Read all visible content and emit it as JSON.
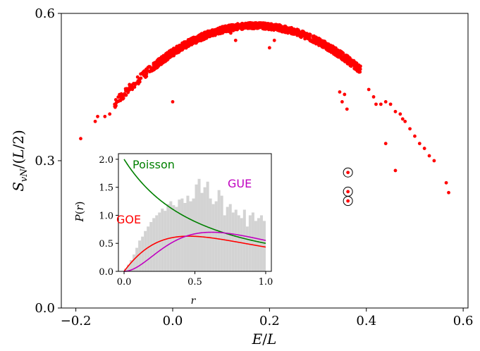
{
  "chart_data": [
    {
      "type": "scatter",
      "xlabel": "E/L",
      "ylabel": "S_vN/(L/2)",
      "xlim": [
        -0.23,
        0.61
      ],
      "ylim": [
        0.0,
        0.6
      ],
      "xticks": [
        "−0.2",
        "0.0",
        "0.2",
        "0.4",
        "0.6"
      ],
      "yticks": [
        "0.0",
        "0.3",
        "0.6"
      ],
      "grid": false,
      "point_color": "#ff0000",
      "highlighted_points": [
        {
          "x": 0.362,
          "y": 0.276
        },
        {
          "x": 0.362,
          "y": 0.237
        },
        {
          "x": 0.362,
          "y": 0.218
        }
      ],
      "outlier_points": [
        {
          "x": -0.19,
          "y": 0.345
        },
        {
          "x": -0.16,
          "y": 0.38
        },
        {
          "x": -0.155,
          "y": 0.39
        },
        {
          "x": -0.14,
          "y": 0.39
        },
        {
          "x": -0.13,
          "y": 0.395
        },
        {
          "x": 0.345,
          "y": 0.44
        },
        {
          "x": 0.355,
          "y": 0.435
        },
        {
          "x": 0.35,
          "y": 0.42
        },
        {
          "x": 0.36,
          "y": 0.405
        },
        {
          "x": 0.405,
          "y": 0.445
        },
        {
          "x": 0.415,
          "y": 0.43
        },
        {
          "x": 0.42,
          "y": 0.415
        },
        {
          "x": 0.43,
          "y": 0.415
        },
        {
          "x": 0.44,
          "y": 0.42
        },
        {
          "x": 0.45,
          "y": 0.415
        },
        {
          "x": 0.46,
          "y": 0.4
        },
        {
          "x": 0.47,
          "y": 0.395
        },
        {
          "x": 0.475,
          "y": 0.385
        },
        {
          "x": 0.48,
          "y": 0.38
        },
        {
          "x": 0.49,
          "y": 0.365
        },
        {
          "x": 0.5,
          "y": 0.35
        },
        {
          "x": 0.51,
          "y": 0.335
        },
        {
          "x": 0.52,
          "y": 0.325
        },
        {
          "x": 0.53,
          "y": 0.31
        },
        {
          "x": 0.54,
          "y": 0.3
        },
        {
          "x": 0.44,
          "y": 0.335
        },
        {
          "x": 0.46,
          "y": 0.28
        },
        {
          "x": 0.565,
          "y": 0.255
        },
        {
          "x": 0.57,
          "y": 0.235
        },
        {
          "x": 0.0,
          "y": 0.42
        },
        {
          "x": 0.12,
          "y": 0.56
        },
        {
          "x": 0.13,
          "y": 0.545
        },
        {
          "x": 0.2,
          "y": 0.53
        },
        {
          "x": 0.21,
          "y": 0.545
        }
      ],
      "curve_points": 1400,
      "curve_model": "approximately parabolic dense band peaking near E/L≈0.17, S≈0.575"
    },
    {
      "type": "line",
      "inset": true,
      "xlabel": "r",
      "ylabel": "P(r)",
      "xlim": [
        -0.04,
        1.04
      ],
      "ylim": [
        0.0,
        2.1
      ],
      "xticks": [
        "0.0",
        "0.5",
        "1.0"
      ],
      "yticks": [
        "0.0",
        "0.5",
        "1.0",
        "1.5",
        "2.0"
      ],
      "series": [
        {
          "name": "Poisson",
          "color": "#008000"
        },
        {
          "name": "GOE",
          "color": "#ff0000"
        },
        {
          "name": "GUE",
          "color": "#c000c0"
        }
      ],
      "histogram": {
        "color": "#d3d3d3",
        "bin_width": 0.02,
        "values": [
          0.05,
          0.12,
          0.2,
          0.3,
          0.42,
          0.55,
          0.62,
          0.72,
          0.8,
          0.88,
          0.95,
          1.0,
          1.05,
          1.12,
          1.08,
          1.2,
          1.25,
          1.18,
          1.15,
          1.28,
          1.3,
          1.22,
          1.35,
          1.25,
          1.3,
          1.55,
          1.65,
          1.4,
          1.5,
          1.6,
          1.3,
          1.2,
          1.25,
          1.45,
          1.35,
          1.0,
          1.15,
          1.2,
          1.05,
          1.1,
          1.0,
          0.95,
          1.1,
          0.8,
          1.0,
          1.05,
          0.9,
          0.95,
          1.0,
          0.9
        ]
      }
    }
  ]
}
